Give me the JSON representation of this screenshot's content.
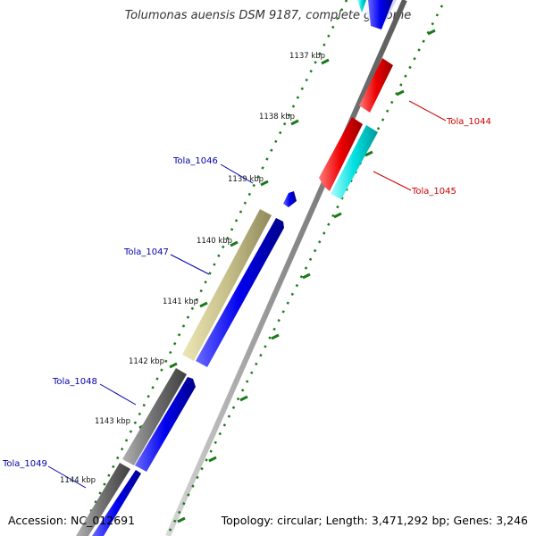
{
  "title": "Tolumonas auensis DSM 9187, complete genome",
  "footer": {
    "accession": "Accession: NC_012691",
    "summary": "Topology: circular; Length: 3,471,292 bp; Genes: 3,246"
  },
  "colors": {
    "backbone": "#9a9a9a",
    "forward_gene": "#0000ee",
    "reverse_gene": "#ee0000",
    "reverse_gene_alt": "#00dddd",
    "pseudo_gene": "#c8c08a",
    "gray_gene": "#707070",
    "tick": "#1a7a1a",
    "label_forward": "#0000aa",
    "label_reverse": "#cc0000"
  },
  "ticks": [
    {
      "label": "1137 kbp"
    },
    {
      "label": "1138 kbp"
    },
    {
      "label": "1139 kbp"
    },
    {
      "label": "1140 kbp"
    },
    {
      "label": "1141 kbp"
    },
    {
      "label": "1142 kbp"
    },
    {
      "label": "1143 kbp"
    },
    {
      "label": "1144 kbp"
    }
  ],
  "genes": [
    {
      "id": "Tola_1044",
      "strand": "reverse"
    },
    {
      "id": "Tola_1045",
      "strand": "reverse"
    },
    {
      "id": "Tola_1046",
      "strand": "forward"
    },
    {
      "id": "Tola_1047",
      "strand": "forward"
    },
    {
      "id": "Tola_1048",
      "strand": "forward"
    },
    {
      "id": "Tola_1049",
      "strand": "forward"
    }
  ]
}
